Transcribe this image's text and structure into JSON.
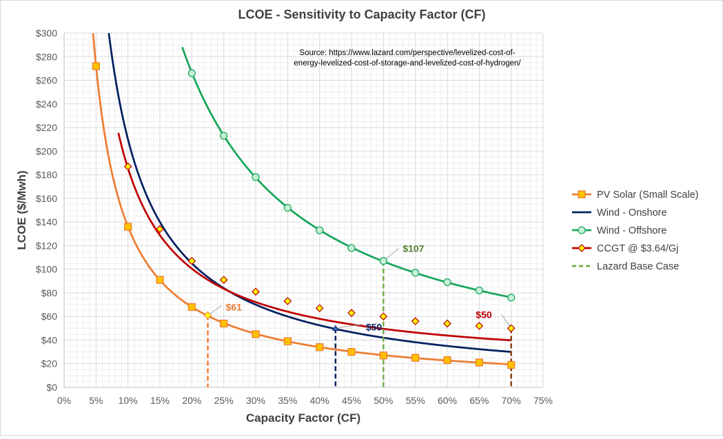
{
  "chart_data": {
    "type": "line",
    "title": "LCOE - Sensitivity to Capacity Factor (CF)",
    "xlabel": "Capacity Factor (CF)",
    "ylabel": "LCOE ($/Mwh)",
    "source_text": [
      "Source: https://www.lazard.com/perspective/levelized-cost-of-",
      "energy-levelized-cost-of-storage-and-levelized-cost-of-hydrogen/"
    ],
    "xlim": [
      0,
      75
    ],
    "ylim": [
      0,
      300
    ],
    "x_ticks": [
      0,
      5,
      10,
      15,
      20,
      25,
      30,
      35,
      40,
      45,
      50,
      55,
      60,
      65,
      70,
      75
    ],
    "x_tick_labels": [
      "0%",
      "5%",
      "10%",
      "15%",
      "20%",
      "25%",
      "30%",
      "35%",
      "40%",
      "45%",
      "50%",
      "55%",
      "60%",
      "65%",
      "70%",
      "75%"
    ],
    "y_ticks": [
      0,
      20,
      40,
      60,
      80,
      100,
      120,
      140,
      160,
      180,
      200,
      220,
      240,
      260,
      280,
      300
    ],
    "y_tick_labels": [
      "$0",
      "$20",
      "$40",
      "$60",
      "$80",
      "$100",
      "$120",
      "$140",
      "$160",
      "$180",
      "$200",
      "$220",
      "$240",
      "$260",
      "$280",
      "$300"
    ],
    "grid": true,
    "legend_position": "right",
    "series": [
      {
        "name": "PV Solar (Small Scale)",
        "color": "#ED7D31",
        "marker": "square",
        "k": 1361,
        "x": [
          5,
          10,
          15,
          20,
          25,
          30,
          35,
          40,
          45,
          50,
          55,
          60,
          65,
          70
        ],
        "y": [
          272,
          136,
          91,
          68,
          54,
          45,
          39,
          34,
          30,
          27,
          25,
          23,
          21,
          19
        ]
      },
      {
        "name": "Wind - Onshore",
        "color": "#002060",
        "marker": "none",
        "k": 2100,
        "x": [
          5,
          10,
          15,
          20,
          25,
          30,
          35,
          40,
          45,
          50,
          55,
          60,
          65,
          70
        ],
        "y": [
          420,
          210,
          140,
          105,
          84,
          70,
          60,
          52.5,
          46.7,
          42,
          38.2,
          35,
          32.3,
          30
        ]
      },
      {
        "name": "Wind - Offshore",
        "color": "#17A65A",
        "marker": "circle",
        "k": 5330,
        "x": [
          20,
          25,
          30,
          35,
          40,
          45,
          50,
          55,
          60,
          65,
          70
        ],
        "y": [
          266,
          213,
          178,
          152,
          133,
          118,
          107,
          97,
          89,
          82,
          76
        ]
      },
      {
        "name": "CCGT @ $3.64/Gj",
        "color": "#C00000",
        "marker": "diamond",
        "a": 15.5,
        "b": 1700,
        "x": [
          10,
          15,
          20,
          25,
          30,
          35,
          40,
          45,
          50,
          55,
          60,
          65,
          70
        ],
        "y": [
          187,
          134,
          107,
          91,
          81,
          73,
          67,
          63,
          60,
          56,
          54,
          52,
          50
        ]
      }
    ],
    "base_case": {
      "legend_label": "Lazard Base Case",
      "color": "#70AD47",
      "markers": [
        {
          "series": "PV Solar (Small Scale)",
          "x": 22.5,
          "y": 61,
          "label": "$61",
          "color": "#ED7D31"
        },
        {
          "series": "Wind - Onshore",
          "x": 42.5,
          "y": 50,
          "label": "$50",
          "color": "#002060"
        },
        {
          "series": "Wind - Offshore",
          "x": 50,
          "y": 107,
          "label": "$107",
          "color": "#548235"
        },
        {
          "series": "CCGT @ $3.64/Gj",
          "x": 70,
          "y": 50,
          "label": "$50",
          "color": "#C00000"
        }
      ]
    }
  }
}
